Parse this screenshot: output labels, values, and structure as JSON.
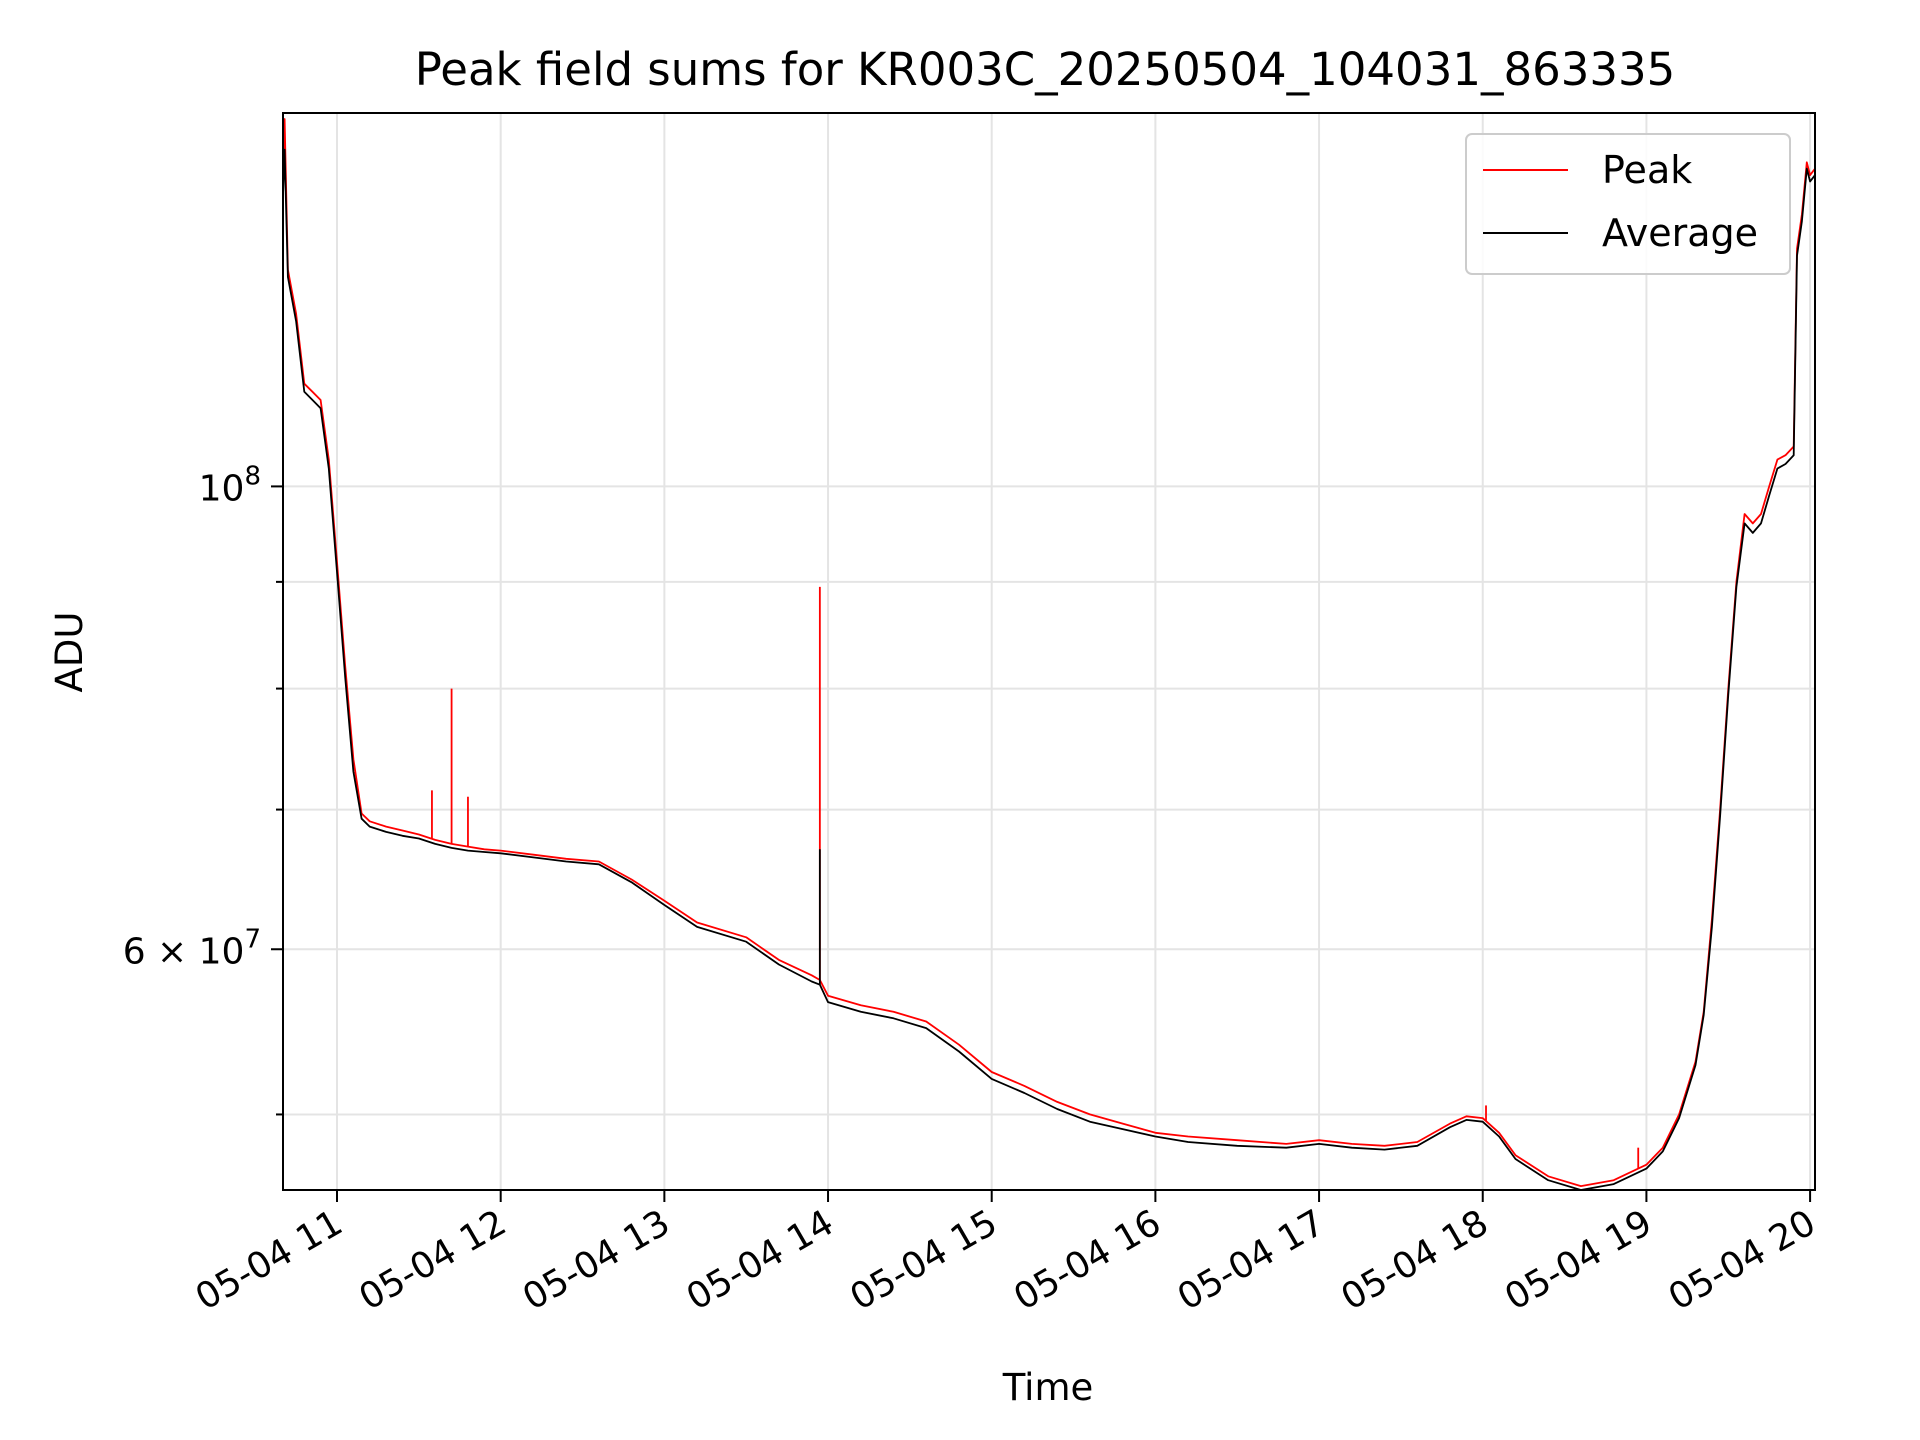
{
  "chart_data": {
    "type": "line",
    "title": "Peak field sums for KR003C_20250504_104031_863335",
    "xlabel": "Time",
    "ylabel": "ADU",
    "y_scale": "log",
    "x_unit": "hours (local day 2025-05-04)",
    "xlim": [
      10.67,
      20.03
    ],
    "ylim": [
      46000000,
      151000000
    ],
    "x_tick_values": [
      11,
      12,
      13,
      14,
      15,
      16,
      17,
      18,
      19,
      20
    ],
    "x_tick_labels": [
      "05-04 11",
      "05-04 12",
      "05-04 13",
      "05-04 14",
      "05-04 15",
      "05-04 16",
      "05-04 17",
      "05-04 18",
      "05-04 19",
      "05-04 20"
    ],
    "y_major_ticks": [
      {
        "value": 100000000,
        "base": "10",
        "exp": "8",
        "coef": ""
      },
      {
        "value": 60000000,
        "base": "10",
        "exp": "7",
        "coef": "6"
      }
    ],
    "y_minor_ticks": [
      50000000,
      70000000,
      80000000,
      90000000
    ],
    "grid": true,
    "legend_position": "top-right",
    "series": [
      {
        "name": "Peak",
        "color": "#ff0000",
        "x": [
          10.67,
          10.68,
          10.7,
          10.75,
          10.8,
          10.85,
          10.9,
          10.95,
          11.0,
          11.05,
          11.1,
          11.15,
          11.2,
          11.3,
          11.4,
          11.5,
          11.6,
          11.7,
          11.8,
          11.9,
          12.0,
          12.2,
          12.4,
          12.6,
          12.8,
          13.0,
          13.2,
          13.5,
          13.7,
          13.9,
          13.95,
          14.0,
          14.2,
          14.4,
          14.6,
          14.8,
          15.0,
          15.2,
          15.4,
          15.6,
          15.8,
          16.0,
          16.2,
          16.5,
          16.8,
          17.0,
          17.2,
          17.4,
          17.6,
          17.8,
          17.9,
          18.0,
          18.1,
          18.2,
          18.4,
          18.6,
          18.8,
          19.0,
          19.1,
          19.2,
          19.3,
          19.35,
          19.4,
          19.45,
          19.5,
          19.55,
          19.6,
          19.65,
          19.7,
          19.75,
          19.8,
          19.85,
          19.9,
          19.92,
          19.95,
          19.98,
          20.0,
          20.03
        ],
        "values": [
          140000000,
          150000000,
          127000000,
          121000000,
          112000000,
          111000000,
          110000000,
          103000000,
          92000000,
          82000000,
          74000000,
          69700000,
          69100000,
          68700000,
          68400000,
          68100000,
          67700000,
          67400000,
          67200000,
          67000000,
          66900000,
          66600000,
          66300000,
          66100000,
          64800000,
          63300000,
          61800000,
          60800000,
          59300000,
          58300000,
          58000000,
          57000000,
          56400000,
          56000000,
          55400000,
          54000000,
          52400000,
          51600000,
          50700000,
          50000000,
          49500000,
          49000000,
          48800000,
          48600000,
          48400000,
          48600000,
          48400000,
          48300000,
          48500000,
          49500000,
          49900000,
          49800000,
          49000000,
          47800000,
          46700000,
          46200000,
          46500000,
          47300000,
          48200000,
          50000000,
          53000000,
          56000000,
          62000000,
          70000000,
          80000000,
          90000000,
          97000000,
          96000000,
          97000000,
          100000000,
          103000000,
          103500000,
          104500000,
          130000000,
          135000000,
          143000000,
          141000000,
          142000000
        ]
      },
      {
        "name": "Average",
        "color": "#000000",
        "x": [
          10.67,
          10.68,
          10.7,
          10.75,
          10.8,
          10.85,
          10.9,
          10.95,
          11.0,
          11.05,
          11.1,
          11.15,
          11.2,
          11.3,
          11.4,
          11.5,
          11.6,
          11.7,
          11.8,
          11.9,
          12.0,
          12.2,
          12.4,
          12.6,
          12.8,
          13.0,
          13.2,
          13.5,
          13.7,
          13.9,
          13.95,
          14.0,
          14.2,
          14.4,
          14.6,
          14.8,
          15.0,
          15.2,
          15.4,
          15.6,
          15.8,
          16.0,
          16.2,
          16.5,
          16.8,
          17.0,
          17.2,
          17.4,
          17.6,
          17.8,
          17.9,
          18.0,
          18.1,
          18.2,
          18.4,
          18.6,
          18.8,
          19.0,
          19.1,
          19.2,
          19.3,
          19.35,
          19.4,
          19.45,
          19.5,
          19.55,
          19.6,
          19.65,
          19.7,
          19.75,
          19.8,
          19.85,
          19.9,
          19.92,
          19.95,
          19.98,
          20.0,
          20.03
        ],
        "values": [
          138000000,
          145000000,
          126000000,
          120000000,
          111000000,
          110000000,
          109000000,
          102000000,
          91000000,
          81000000,
          73000000,
          69300000,
          68700000,
          68300000,
          68000000,
          67800000,
          67400000,
          67100000,
          66900000,
          66800000,
          66700000,
          66400000,
          66100000,
          65900000,
          64600000,
          63000000,
          61500000,
          60500000,
          59000000,
          57900000,
          57700000,
          56600000,
          56000000,
          55600000,
          55000000,
          53600000,
          52000000,
          51200000,
          50300000,
          49600000,
          49200000,
          48800000,
          48500000,
          48300000,
          48200000,
          48400000,
          48200000,
          48100000,
          48300000,
          49300000,
          49700000,
          49600000,
          48800000,
          47600000,
          46500000,
          46000000,
          46300000,
          47100000,
          48000000,
          49800000,
          52800000,
          55800000,
          61500000,
          69500000,
          79500000,
          89500000,
          96000000,
          95000000,
          96000000,
          99000000,
          102000000,
          102500000,
          103500000,
          129000000,
          134000000,
          142000000,
          140000000,
          141000000
        ]
      }
    ],
    "spikes": [
      {
        "series": "Peak",
        "x": 11.7,
        "value": 80000000
      },
      {
        "series": "Peak",
        "x": 11.58,
        "value": 71500000
      },
      {
        "series": "Peak",
        "x": 11.8,
        "value": 71000000
      },
      {
        "series": "Peak",
        "x": 13.95,
        "value": 89500000
      },
      {
        "series": "Average",
        "x": 13.95,
        "value": 67000000
      },
      {
        "series": "Peak",
        "x": 18.02,
        "value": 50500000
      },
      {
        "series": "Peak",
        "x": 18.95,
        "value": 48200000
      }
    ]
  }
}
